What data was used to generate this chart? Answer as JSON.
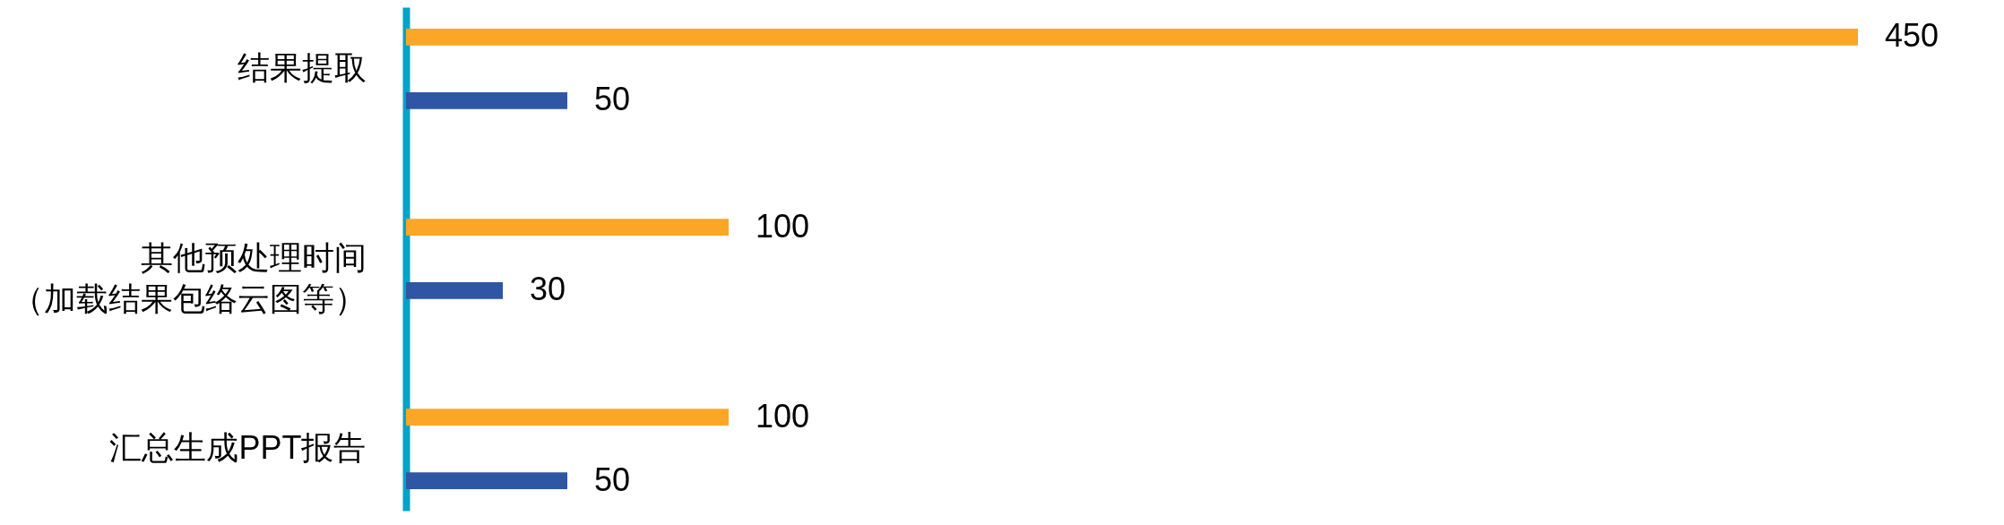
{
  "chart_data": {
    "type": "bar",
    "orientation": "horizontal",
    "categories": [
      "结果提取",
      "其他预处理时间（加载结果包络云图等）",
      "汇总生成PPT报告"
    ],
    "series": [
      {
        "color": "#fca627",
        "values": [
          450,
          100,
          100
        ]
      },
      {
        "color": "#2e56a5",
        "values": [
          50,
          30,
          50
        ]
      }
    ],
    "data_labels": true,
    "legend": false,
    "grid": false,
    "tick_labels": "y"
  }
}
